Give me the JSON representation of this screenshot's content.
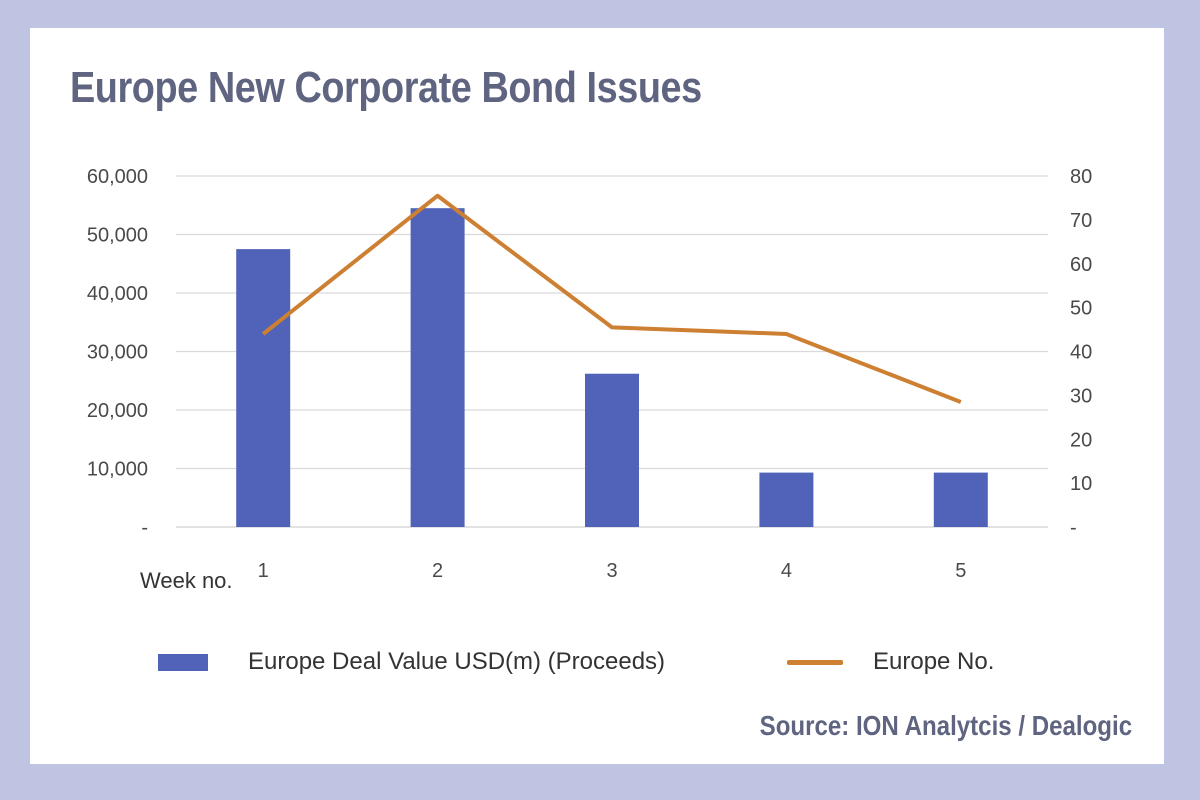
{
  "title": "Europe New Corporate Bond Issues",
  "source": "Source: ION Analytcis / Dealogic",
  "colors": {
    "bars": "#5163b9",
    "line": "#cd7f32",
    "grid": "#d9d9d9",
    "frame": "#bfc4e2"
  },
  "chart_data": {
    "type": "bar",
    "categories": [
      "1",
      "2",
      "3",
      "4",
      "5"
    ],
    "xlabel": "Week no.",
    "series": [
      {
        "name": "Europe Deal Value USD(m)  (Proceeds)",
        "type": "bar",
        "axis": "left",
        "values": [
          47500,
          54500,
          26200,
          9300,
          9300
        ]
      },
      {
        "name": "Europe No.",
        "type": "line",
        "axis": "right",
        "values": [
          44,
          75.5,
          45.5,
          44,
          28.5
        ]
      }
    ],
    "y_left": {
      "lim": [
        0,
        60000
      ],
      "ticks": [
        "-",
        "10,000",
        "20,000",
        "30,000",
        "40,000",
        "50,000",
        "60,000"
      ]
    },
    "y_right": {
      "lim": [
        0,
        80
      ],
      "ticks": [
        "-",
        "10",
        "20",
        "30",
        "40",
        "50",
        "60",
        "70",
        "80"
      ]
    },
    "grid": true,
    "legend": "bottom"
  }
}
